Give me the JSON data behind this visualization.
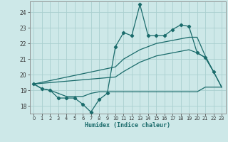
{
  "xlabel": "Humidex (Indice chaleur)",
  "bg_color": "#cde8e8",
  "grid_color": "#aacfcf",
  "line_color": "#1a6b6b",
  "xlim": [
    -0.5,
    23.5
  ],
  "ylim": [
    17.5,
    24.7
  ],
  "yticks": [
    18,
    19,
    20,
    21,
    22,
    23,
    24
  ],
  "xticks": [
    0,
    1,
    2,
    3,
    4,
    5,
    6,
    7,
    8,
    9,
    10,
    11,
    12,
    13,
    14,
    15,
    16,
    17,
    18,
    19,
    20,
    21,
    22,
    23
  ],
  "series_main": {
    "x": [
      0,
      1,
      2,
      3,
      4,
      5,
      6,
      7,
      8,
      9,
      10,
      11,
      12,
      13,
      14,
      15,
      16,
      17,
      18,
      19,
      20,
      21,
      22
    ],
    "y": [
      19.4,
      19.1,
      19.0,
      18.5,
      18.5,
      18.5,
      18.1,
      17.6,
      18.4,
      18.8,
      21.8,
      22.7,
      22.5,
      24.5,
      22.5,
      22.5,
      22.5,
      22.9,
      23.2,
      23.1,
      21.4,
      21.1,
      20.2
    ]
  },
  "series_flat": {
    "x": [
      0,
      1,
      2,
      3,
      4,
      5,
      6,
      7,
      8,
      9,
      10,
      11,
      12,
      13,
      14,
      15,
      16,
      17,
      18,
      19,
      20,
      21,
      22,
      23
    ],
    "y": [
      19.4,
      19.1,
      19.0,
      18.8,
      18.6,
      18.6,
      18.6,
      18.8,
      18.9,
      18.9,
      18.9,
      18.9,
      18.9,
      18.9,
      18.9,
      18.9,
      18.9,
      18.9,
      18.9,
      18.9,
      18.9,
      19.2,
      19.2,
      19.2
    ]
  },
  "series_upper": {
    "x": [
      0,
      10,
      11,
      12,
      13,
      14,
      15,
      16,
      17,
      18,
      19,
      20,
      21,
      22,
      23
    ],
    "y": [
      19.4,
      20.5,
      21.0,
      21.3,
      21.6,
      21.8,
      22.0,
      22.1,
      22.2,
      22.3,
      22.4,
      22.4,
      21.2,
      20.2,
      19.2
    ]
  },
  "series_lower": {
    "x": [
      0,
      10,
      11,
      12,
      13,
      14,
      15,
      16,
      17,
      18,
      19,
      20,
      21,
      22,
      23
    ],
    "y": [
      19.4,
      19.85,
      20.2,
      20.5,
      20.8,
      21.0,
      21.2,
      21.3,
      21.4,
      21.5,
      21.6,
      21.4,
      21.1,
      20.2,
      19.2
    ]
  }
}
